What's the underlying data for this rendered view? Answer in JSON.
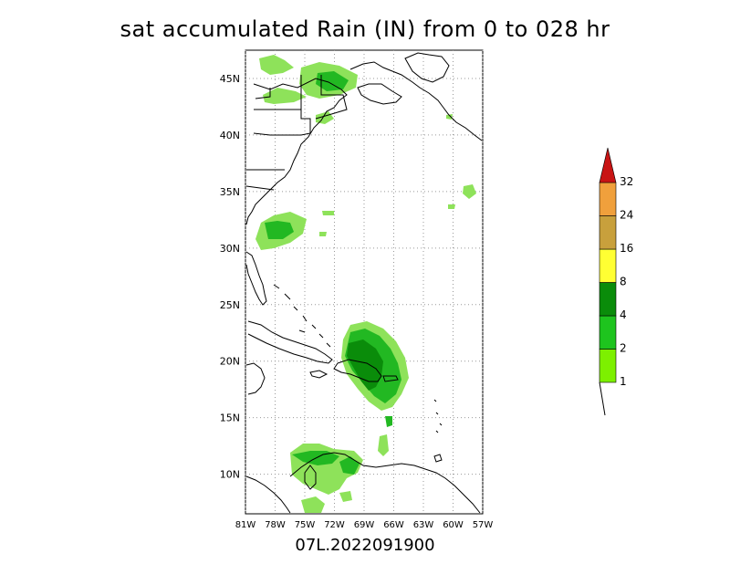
{
  "title": "sat accumulated Rain (IN) from 0 to 028 hr",
  "footer": "07L.2022091900",
  "map": {
    "lon_range": [
      -81,
      -57
    ],
    "lat_range": [
      6.5,
      47.5
    ],
    "lat_ticks": [
      "45N",
      "40N",
      "35N",
      "30N",
      "25N",
      "20N",
      "15N",
      "10N"
    ],
    "lon_ticks": [
      "81W",
      "78W",
      "75W",
      "72W",
      "69W",
      "66W",
      "63W",
      "60W",
      "57W"
    ],
    "gridlines": "dotted"
  },
  "legend": {
    "labels": [
      "1",
      "2",
      "4",
      "8",
      "16",
      "24",
      "32"
    ],
    "colors": [
      "#7df000",
      "#1ec41e",
      "#0a8c0a",
      "#ffff33",
      "#c8a03c",
      "#f0a03c",
      "#c81414"
    ]
  },
  "colors": {
    "light_green": "#8ee25a",
    "green": "#22b822",
    "dark_green": "#0a8c0a"
  }
}
